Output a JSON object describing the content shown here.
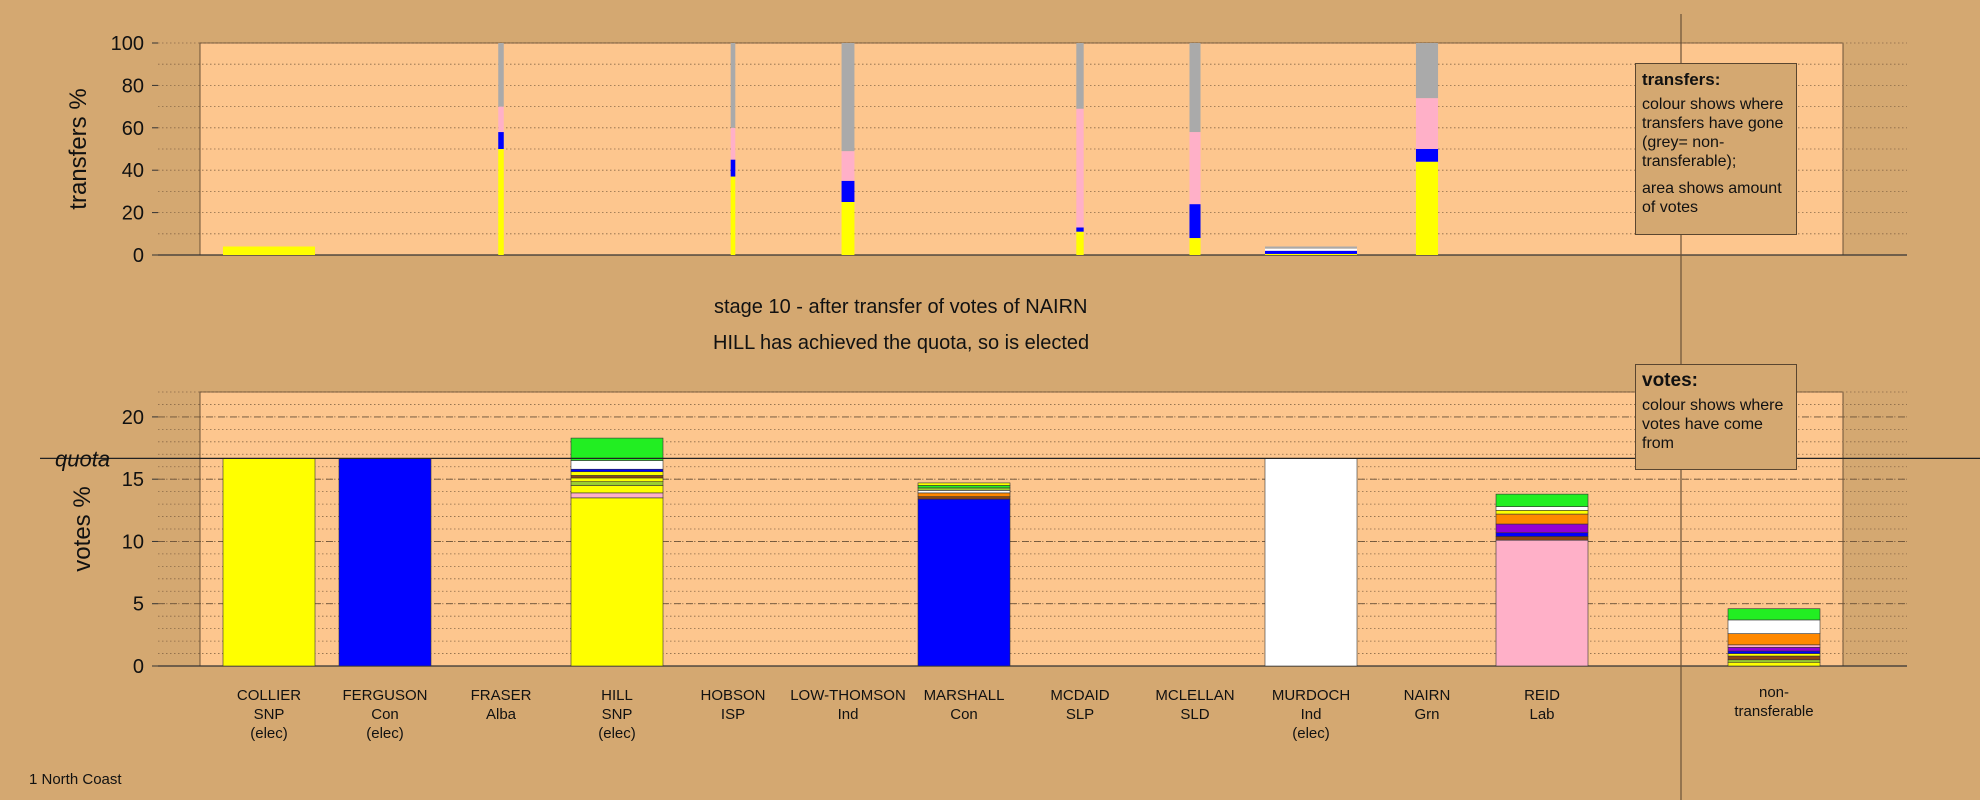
{
  "stage_title": "stage 10 - after transfer of votes of NAIRN",
  "stage_subtitle": "HILL has achieved the quota, so is elected",
  "footer": "1 North Coast",
  "transfers_note": {
    "title": "transfers:",
    "line1": "colour shows where transfers have gone (grey= non-transferable);",
    "line2": "area shows amount of votes"
  },
  "votes_note": {
    "title": "votes:",
    "line1": "colour shows where votes have come from"
  },
  "colors": {
    "background": "#d4a871",
    "plot_area": "#fdc68e",
    "snp": "#ffff00",
    "con": "#0000ff",
    "ind": "#ffffff",
    "lab": "#ffb0c8",
    "grn": "#22ee22",
    "nontransferable": "#aaaaaa"
  },
  "chart_data": [
    {
      "type": "bar",
      "name": "transfers",
      "ylabel": "transfers %",
      "ylim": [
        0,
        100
      ],
      "yticks": [
        0,
        20,
        40,
        60,
        80,
        100
      ],
      "grid": true,
      "categories": [
        "COLLIER",
        "FERGUSON",
        "FRASER",
        "HILL",
        "HOBSON",
        "LOW-THOMSON",
        "MARSHALL",
        "MCDAID",
        "MCLELLAN",
        "MURDOCH",
        "NAIRN",
        "REID"
      ],
      "bars": [
        {
          "category": "COLLIER",
          "width": 1.0,
          "segments": [
            {
              "color": "#ffff00",
              "value": 4
            }
          ]
        },
        {
          "category": "FRASER",
          "width": 0.06,
          "segments": [
            {
              "color": "#ffff00",
              "value": 50
            },
            {
              "color": "#0000ff",
              "value": 8
            },
            {
              "color": "#ffb0c8",
              "value": 12
            },
            {
              "color": "#aaaaaa",
              "value": 30
            }
          ]
        },
        {
          "category": "HOBSON",
          "width": 0.05,
          "segments": [
            {
              "color": "#ffff00",
              "value": 37
            },
            {
              "color": "#0000ff",
              "value": 8
            },
            {
              "color": "#ffb0c8",
              "value": 15
            },
            {
              "color": "#aaaaaa",
              "value": 40
            }
          ]
        },
        {
          "category": "LOW-THOMSON",
          "width": 0.14,
          "segments": [
            {
              "color": "#ffff00",
              "value": 25
            },
            {
              "color": "#0000ff",
              "value": 10
            },
            {
              "color": "#ffb0c8",
              "value": 14
            },
            {
              "color": "#aaaaaa",
              "value": 51
            }
          ]
        },
        {
          "category": "MCDAID",
          "width": 0.08,
          "segments": [
            {
              "color": "#ffff00",
              "value": 11
            },
            {
              "color": "#0000ff",
              "value": 2
            },
            {
              "color": "#ffb0c8",
              "value": 56
            },
            {
              "color": "#aaaaaa",
              "value": 31
            }
          ]
        },
        {
          "category": "MCLELLAN",
          "width": 0.12,
          "segments": [
            {
              "color": "#ffff00",
              "value": 8
            },
            {
              "color": "#0000ff",
              "value": 16
            },
            {
              "color": "#ffb0c8",
              "value": 34
            },
            {
              "color": "#aaaaaa",
              "value": 42
            }
          ]
        },
        {
          "category": "MURDOCH",
          "width": 1.0,
          "segments": [
            {
              "color": "#ffff00",
              "value": 0.5
            },
            {
              "color": "#0000ff",
              "value": 1.5
            },
            {
              "color": "#ffffff",
              "value": 1
            },
            {
              "color": "#aaaaaa",
              "value": 1
            }
          ]
        },
        {
          "category": "NAIRN",
          "width": 0.24,
          "segments": [
            {
              "color": "#ffff00",
              "value": 44
            },
            {
              "color": "#0000ff",
              "value": 6
            },
            {
              "color": "#ffb0c8",
              "value": 24
            },
            {
              "color": "#aaaaaa",
              "value": 26
            }
          ]
        }
      ]
    },
    {
      "type": "bar",
      "name": "votes",
      "ylabel": "votes %",
      "ylim": [
        0,
        22
      ],
      "yticks": [
        0,
        5,
        10,
        15,
        20
      ],
      "quota": 16.67,
      "quota_label": "quota",
      "grid": true,
      "categories": [
        "COLLIER",
        "FERGUSON",
        "FRASER",
        "HILL",
        "HOBSON",
        "LOW-THOMSON",
        "MARSHALL",
        "MCDAID",
        "MCLELLAN",
        "MURDOCH",
        "NAIRN",
        "REID"
      ],
      "tick_labels": [
        [
          "COLLIER",
          "SNP",
          "(elec)"
        ],
        [
          "FERGUSON",
          "Con",
          "(elec)"
        ],
        [
          "FRASER",
          "Alba"
        ],
        [
          "HILL",
          "SNP",
          "(elec)"
        ],
        [
          "HOBSON",
          "ISP"
        ],
        [
          "LOW-THOMSON",
          "Ind"
        ],
        [
          "MARSHALL",
          "Con"
        ],
        [
          "MCDAID",
          "SLP"
        ],
        [
          "MCLELLAN",
          "SLD"
        ],
        [
          "MURDOCH",
          "Ind",
          "(elec)"
        ],
        [
          "NAIRN",
          "Grn"
        ],
        [
          "REID",
          "Lab"
        ]
      ],
      "extra_category_label": [
        "non-",
        "transferable"
      ],
      "bars": [
        {
          "category": "COLLIER",
          "segments": [
            {
              "color": "#ffff00",
              "value": 16.67
            }
          ]
        },
        {
          "category": "FERGUSON",
          "segments": [
            {
              "color": "#0000ff",
              "value": 16.67
            }
          ]
        },
        {
          "category": "HILL",
          "segments": [
            {
              "color": "#ffff00",
              "value": 13.5
            },
            {
              "color": "#ffb0c8",
              "value": 0.4
            },
            {
              "color": "#ffff00",
              "value": 0.6
            },
            {
              "color": "#9acd32",
              "value": 0.3
            },
            {
              "color": "#ffff00",
              "value": 0.3
            },
            {
              "color": "#8b4513",
              "value": 0.2
            },
            {
              "color": "#ffff00",
              "value": 0.3
            },
            {
              "color": "#0000ff",
              "value": 0.2
            },
            {
              "color": "#ffffff",
              "value": 0.7
            },
            {
              "color": "#22ee22",
              "value": 1.8
            }
          ]
        },
        {
          "category": "MARSHALL",
          "segments": [
            {
              "color": "#0000ff",
              "value": 13.4
            },
            {
              "color": "#8b4513",
              "value": 0.2
            },
            {
              "color": "#ff8800",
              "value": 0.3
            },
            {
              "color": "#ffffff",
              "value": 0.2
            },
            {
              "color": "#9acd32",
              "value": 0.2
            },
            {
              "color": "#22ee22",
              "value": 0.2
            },
            {
              "color": "#ffff00",
              "value": 0.2
            }
          ]
        },
        {
          "category": "MURDOCH",
          "segments": [
            {
              "color": "#ffffff",
              "value": 16.67
            }
          ]
        },
        {
          "category": "REID",
          "segments": [
            {
              "color": "#ffb0c8",
              "value": 10.1
            },
            {
              "color": "#8b4513",
              "value": 0.3
            },
            {
              "color": "#0000ff",
              "value": 0.3
            },
            {
              "color": "#9400d3",
              "value": 0.7
            },
            {
              "color": "#ff8800",
              "value": 0.8
            },
            {
              "color": "#ffff00",
              "value": 0.3
            },
            {
              "color": "#ffffff",
              "value": 0.3
            },
            {
              "color": "#22ee22",
              "value": 1.0
            }
          ]
        },
        {
          "category": "non-transferable",
          "segments": [
            {
              "color": "#ffff00",
              "value": 0.3
            },
            {
              "color": "#9acd32",
              "value": 0.2
            },
            {
              "color": "#8b4513",
              "value": 0.3
            },
            {
              "color": "#ffff00",
              "value": 0.2
            },
            {
              "color": "#0000ff",
              "value": 0.2
            },
            {
              "color": "#9400d3",
              "value": 0.3
            },
            {
              "color": "#ffb0c8",
              "value": 0.2
            },
            {
              "color": "#ff8800",
              "value": 0.9
            },
            {
              "color": "#ffffff",
              "value": 1.1
            },
            {
              "color": "#22ee22",
              "value": 0.9
            }
          ]
        }
      ]
    }
  ]
}
